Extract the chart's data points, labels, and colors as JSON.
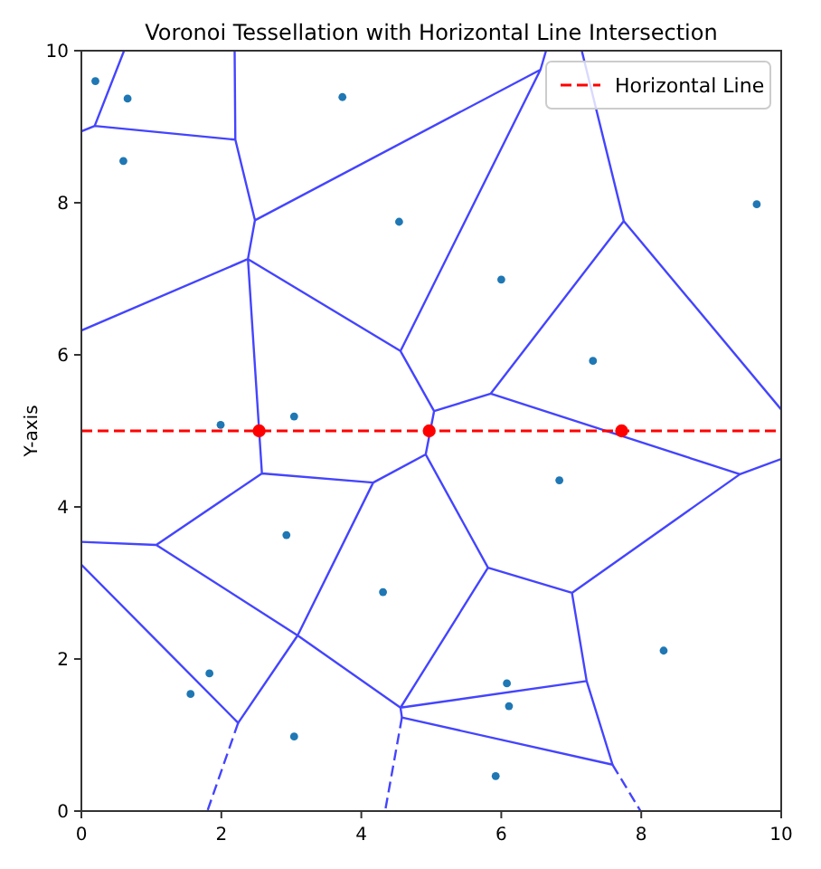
{
  "chart_data": {
    "type": "scatter",
    "title": "Voronoi Tessellation with Horizontal Line Intersection",
    "ylabel": "Y-axis",
    "xlim": [
      0,
      10
    ],
    "ylim": [
      0,
      10
    ],
    "xticks": [
      0,
      2,
      4,
      6,
      8,
      10
    ],
    "yticks": [
      0,
      2,
      4,
      6,
      8,
      10
    ],
    "grid": false,
    "legend": "top right",
    "series": [
      {
        "type": "line",
        "color": "#4444ff",
        "line_style": "solid",
        "marker": "none",
        "x": [
          0.61,
          0.19,
          0,
          null,
          0.19,
          2.2,
          2.19,
          null,
          2.2,
          2.48,
          6.56,
          6.64,
          null,
          2.48,
          2.38,
          0,
          null,
          2.38,
          2.58,
          1.07,
          0,
          null,
          2.38,
          4.56,
          6.56,
          null,
          4.56,
          5.04,
          5.85,
          7.75,
          7.15,
          null,
          7.75,
          10,
          null,
          5.04,
          4.92,
          5.81,
          7.01,
          9.41,
          10,
          null,
          5.85,
          9.41,
          null,
          7.01,
          7.22,
          7.59,
          4.58,
          4.56,
          7.22,
          null,
          5.81,
          4.56,
          3.09,
          1.07,
          null,
          4.92,
          4.17,
          2.58,
          null,
          4.17,
          3.09,
          2.24,
          0
        ],
        "values": [
          10,
          9.01,
          8.94,
          null,
          9.01,
          8.83,
          10,
          null,
          8.83,
          7.77,
          9.75,
          10,
          null,
          7.77,
          7.26,
          6.32,
          null,
          7.26,
          4.44,
          3.5,
          3.54,
          null,
          7.26,
          6.05,
          9.75,
          null,
          6.05,
          5.26,
          5.49,
          7.76,
          10,
          null,
          7.76,
          5.28,
          null,
          5.26,
          4.69,
          3.2,
          2.87,
          4.43,
          4.63,
          null,
          5.49,
          4.43,
          null,
          2.87,
          1.71,
          0.61,
          1.23,
          1.36,
          1.71,
          null,
          3.2,
          1.36,
          2.31,
          3.5,
          null,
          4.69,
          4.32,
          4.44,
          null,
          4.32,
          2.31,
          1.16,
          3.24
        ]
      },
      {
        "type": "line",
        "color": "#4444ff",
        "line_style": "dashed",
        "marker": "none",
        "x": [
          2.24,
          1.8,
          null,
          4.58,
          4.34,
          null,
          7.59,
          7.99
        ],
        "values": [
          1.16,
          0,
          null,
          1.23,
          0,
          null,
          0.61,
          0
        ]
      },
      {
        "color": "#1f77b4",
        "marker": "circle",
        "x": [
          0.2,
          0.66,
          0.6,
          3.73,
          4.54,
          1.99,
          3.04,
          6.0,
          7.31,
          9.65,
          6.83,
          2.93,
          4.31,
          1.83,
          1.56,
          3.04,
          6.08,
          6.11,
          5.92,
          8.32
        ],
        "values": [
          9.6,
          9.37,
          8.55,
          9.39,
          7.75,
          5.08,
          5.19,
          6.99,
          5.92,
          7.98,
          4.35,
          3.63,
          2.88,
          1.81,
          1.54,
          0.98,
          1.68,
          1.38,
          0.46,
          2.11
        ]
      },
      {
        "type": "line",
        "name": "Horizontal Line",
        "color": "#ff0000",
        "line_style": "dashed",
        "marker": "none",
        "x": [
          0,
          10
        ],
        "values": [
          5,
          5
        ]
      },
      {
        "color": "#ff0000",
        "marker": "circle",
        "x": [
          2.54,
          4.97,
          7.72
        ],
        "values": [
          5,
          5,
          5
        ]
      }
    ]
  }
}
